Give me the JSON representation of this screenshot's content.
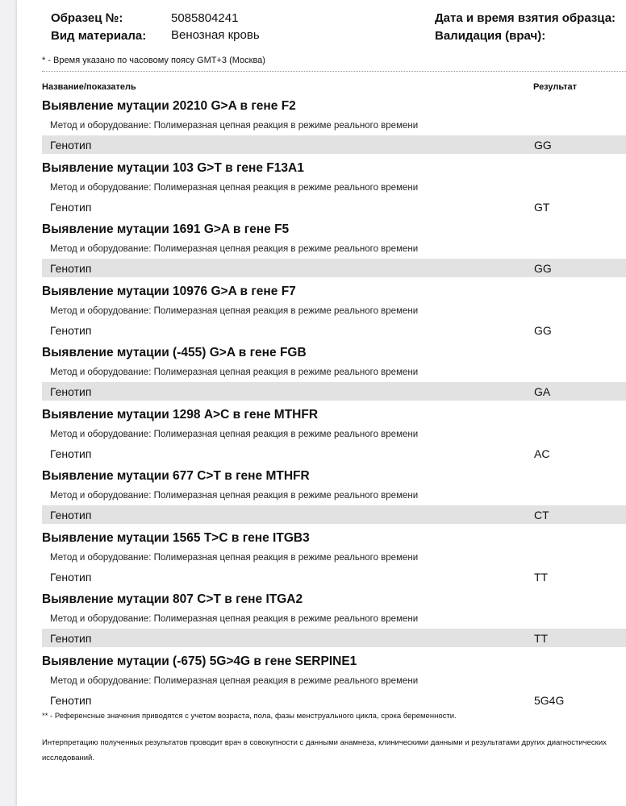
{
  "header": {
    "sample_label": "Образец №:",
    "sample_value": "5085804241",
    "material_label": "Вид материала:",
    "material_value": "Венозная кровь",
    "date_label": "Дата и время взятия образца:",
    "validation_label": "Валидация (врач):"
  },
  "timezone_note": "* - Время указано по часовому поясу GMT+3 (Москва)",
  "columns": {
    "name": "Название/показатель",
    "result": "Результат"
  },
  "method_text": "Метод и оборудование:  Полимеразная цепная реакция в режиме реального времени",
  "genotype_label": "Генотип",
  "tests": [
    {
      "title": "Выявление мутации 20210 G>A в гене F2",
      "result": "GG"
    },
    {
      "title": "Выявление мутации 103 G>T в гене F13A1",
      "result": "GT"
    },
    {
      "title": "Выявление мутации 1691 G>A в гене F5",
      "result": "GG"
    },
    {
      "title": "Выявление мутации 10976 G>A в гене F7",
      "result": "GG"
    },
    {
      "title": "Выявление мутации (-455) G>A в гене FGB",
      "result": "GA"
    },
    {
      "title": "Выявление мутации 1298 A>C в гене MTHFR",
      "result": "AC"
    },
    {
      "title": "Выявление мутации 677 C>T в гене MTHFR",
      "result": "CT"
    },
    {
      "title": "Выявление мутации 1565 T>C в гене ITGB3",
      "result": "TT"
    },
    {
      "title": "Выявление мутации 807 C>T в гене ITGA2",
      "result": "TT"
    },
    {
      "title": "Выявление мутации (-675) 5G>4G в гене SERPINE1",
      "result": "5G4G"
    }
  ],
  "footnote_reference": "** - Референсные значения приводятся с учетом возраста, пола, фазы менструального цикла, срока беременности.",
  "footnote_interpretation": "Интерпретацию полученных результатов проводит врач в совокупности с данными анамнеза, клиническими данными и результатами других диагностических исследований."
}
